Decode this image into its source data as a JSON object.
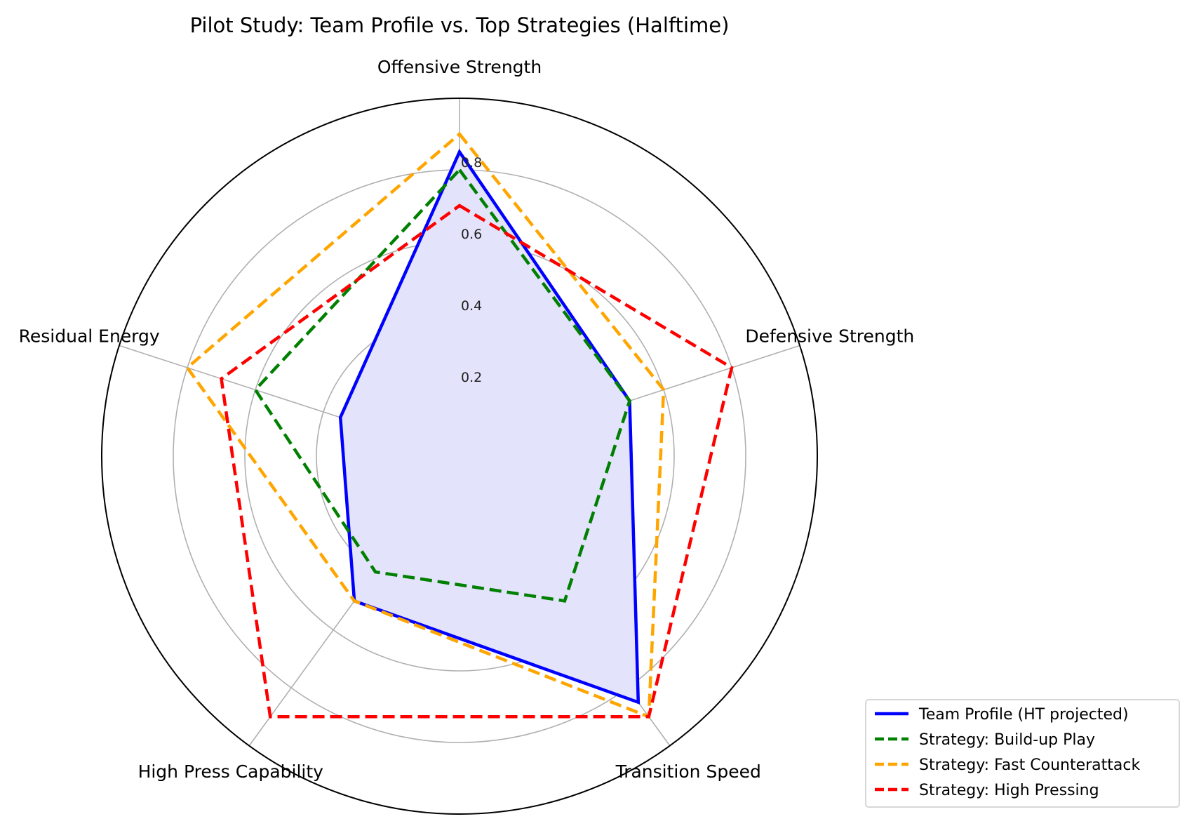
{
  "chart_data": {
    "type": "radar",
    "title": "Pilot Study: Team Profile vs. Top Strategies (Halftime)",
    "axes": [
      "Offensive Strength",
      "Defensive Strength",
      "Transition Speed",
      "High Press Capability",
      "Residual Energy"
    ],
    "rlim": [
      0,
      1.0
    ],
    "rticks": [
      0.2,
      0.4,
      0.6,
      0.8
    ],
    "rtick_labels": [
      "0.2",
      "0.4",
      "0.6",
      "0.8"
    ],
    "grid": true,
    "legend_position": "lower-right",
    "series": [
      {
        "name": "Team Profile (HT projected)",
        "values": [
          0.85,
          0.5,
          0.85,
          0.5,
          0.35
        ],
        "color": "#0000ff",
        "style": "solid",
        "fill": true,
        "fill_color": "#e3e3fb"
      },
      {
        "name": "Strategy: Build-up Play",
        "values": [
          0.8,
          0.5,
          0.5,
          0.4,
          0.6
        ],
        "color": "#008000",
        "style": "dashed",
        "fill": false
      },
      {
        "name": "Strategy: Fast Counterattack",
        "values": [
          0.9,
          0.6,
          0.9,
          0.5,
          0.8
        ],
        "color": "#ffa500",
        "style": "dashed",
        "fill": false
      },
      {
        "name": "Strategy: High Pressing",
        "values": [
          0.7,
          0.8,
          0.9,
          0.9,
          0.7
        ],
        "color": "#ff0000",
        "style": "dashed",
        "fill": false
      }
    ]
  }
}
